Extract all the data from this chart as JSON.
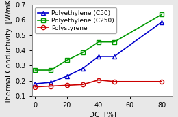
{
  "series": [
    {
      "label": "Polyethylene (C50)",
      "x": [
        0,
        10,
        20,
        30,
        40,
        50,
        80
      ],
      "y": [
        0.18,
        0.19,
        0.23,
        0.28,
        0.36,
        0.36,
        0.585
      ],
      "color": "#0000cc",
      "marker": "^",
      "markerfacecolor": "none"
    },
    {
      "label": "Polyethylene (C250)",
      "x": [
        0,
        10,
        20,
        30,
        40,
        50,
        80
      ],
      "y": [
        0.27,
        0.27,
        0.335,
        0.385,
        0.455,
        0.455,
        0.635
      ],
      "color": "#009900",
      "marker": "s",
      "markerfacecolor": "none"
    },
    {
      "label": "Polystyrene",
      "x": [
        0,
        10,
        20,
        30,
        40,
        50,
        80
      ],
      "y": [
        0.16,
        0.165,
        0.17,
        0.175,
        0.205,
        0.195,
        0.195
      ],
      "color": "#cc0000",
      "marker": "o",
      "markerfacecolor": "none"
    }
  ],
  "xlabel": "DC  [%]",
  "ylabel": "Thermal Conductivity  [W/mK]",
  "xlim": [
    -2,
    87
  ],
  "ylim": [
    0.1,
    0.7
  ],
  "xticks": [
    0,
    20,
    40,
    60,
    80
  ],
  "yticks": [
    0.1,
    0.2,
    0.3,
    0.4,
    0.5,
    0.6,
    0.7
  ],
  "legend_loc": "upper left",
  "background_color": "#e8e8e8",
  "plot_background": "#ffffff",
  "fontsize_axis_label": 7.5,
  "fontsize_tick": 7,
  "fontsize_legend": 6.5,
  "linewidth": 1.2,
  "markersize": 4.5
}
